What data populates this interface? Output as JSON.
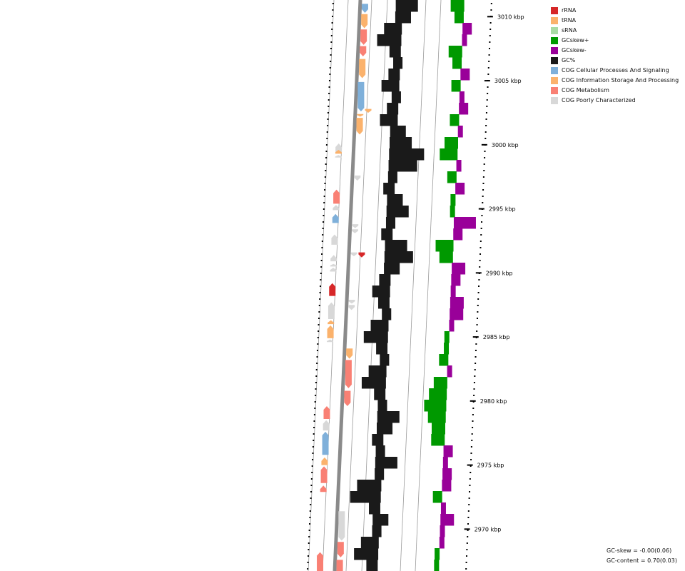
{
  "legend": [
    {
      "label": "rRNA",
      "color": "#d62728"
    },
    {
      "label": "tRNA",
      "color": "#fbb26c"
    },
    {
      "label": "sRNA",
      "color": "#a8dba4"
    },
    {
      "label": "GCskew+",
      "color": "#009900"
    },
    {
      "label": "GCskew-",
      "color": "#990099"
    },
    {
      "label": "GC%",
      "color": "#1a1a1a"
    },
    {
      "label": "COG Cellular Processes And Signaling",
      "color": "#7fb0da"
    },
    {
      "label": "COG Information Storage And Processing",
      "color": "#fbb26c"
    },
    {
      "label": "COG Metabolism",
      "color": "#f98074"
    },
    {
      "label": "COG Poorly Characterized",
      "color": "#d8d8d8"
    }
  ],
  "stats": {
    "gc_skew": "GC-skew = -0.00(0.06)",
    "gc_content": "GC-content = 0.70(0.03)"
  },
  "ticks": [
    "3010 kbp",
    "3005 kbp",
    "3000 kbp",
    "2995 kbp",
    "2990 kbp",
    "2985 kbp",
    "2980 kbp",
    "2975 kbp",
    "2970 kbp"
  ],
  "tracks": {
    "gc_content": [
      0.72,
      0.71,
      0.68,
      0.67,
      0.69,
      0.7,
      0.69,
      0.68,
      0.7,
      0.69,
      0.68,
      0.71,
      0.72,
      0.74,
      0.73,
      0.7,
      0.69,
      0.71,
      0.72,
      0.7,
      0.69,
      0.72,
      0.73,
      0.71,
      0.69,
      0.68,
      0.69,
      0.7,
      0.68,
      0.67,
      0.69,
      0.7,
      0.68,
      0.67,
      0.69,
      0.7,
      0.72,
      0.71,
      0.69,
      0.7,
      0.72,
      0.7,
      0.67,
      0.66,
      0.69,
      0.71,
      0.7,
      0.68,
      0.67,
      0.69
    ],
    "gc_skew": [
      -0.03,
      -0.02,
      0.02,
      0.01,
      -0.03,
      -0.02,
      0.02,
      -0.02,
      0.01,
      0.02,
      -0.02,
      0.01,
      -0.03,
      -0.04,
      0.01,
      -0.02,
      0.02,
      -0.01,
      -0.01,
      0.05,
      0.02,
      -0.04,
      -0.03,
      0.03,
      0.02,
      0.01,
      0.03,
      0.03,
      0.01,
      -0.01,
      -0.01,
      -0.02,
      0.01,
      -0.03,
      -0.04,
      -0.05,
      -0.04,
      -0.03,
      -0.03,
      0.02,
      0.01,
      0.02,
      0.02,
      -0.02,
      0.01,
      0.03,
      0.01,
      0.01,
      -0.01,
      -0.01
    ]
  },
  "features": [
    {
      "track": "outer",
      "category": "rRNA",
      "strand": "+",
      "start": 2989.2,
      "end": 2988.2
    },
    {
      "track": "outer",
      "category": "COG Poorly Characterized",
      "strand": "+",
      "start": 3000.1,
      "end": 2999.4
    },
    {
      "track": "outer",
      "category": "tRNA",
      "strand": "+",
      "start": 2999.6,
      "end": 2999.3
    },
    {
      "track": "outer",
      "category": "COG Poorly Characterized",
      "strand": "+",
      "start": 2999.2,
      "end": 2999.0
    },
    {
      "track": "outer",
      "category": "COG Metabolism",
      "strand": "+",
      "start": 2996.5,
      "end": 2995.4
    },
    {
      "track": "outer",
      "category": "COG Poorly Characterized",
      "strand": "+",
      "start": 2995.3,
      "end": 2994.9
    },
    {
      "track": "outer",
      "category": "COG Cellular Processes And Signaling",
      "strand": "+",
      "start": 2994.6,
      "end": 2993.9
    },
    {
      "track": "outer",
      "category": "COG Poorly Characterized",
      "strand": "+",
      "start": 2993.0,
      "end": 2992.2
    },
    {
      "track": "outer",
      "category": "COG Poorly Characterized",
      "strand": "+",
      "start": 2991.4,
      "end": 2990.9
    },
    {
      "track": "outer",
      "category": "COG Poorly Characterized",
      "strand": "+",
      "start": 2990.7,
      "end": 2990.5
    },
    {
      "track": "outer",
      "category": "COG Poorly Characterized",
      "strand": "+",
      "start": 2990.4,
      "end": 2990.1
    },
    {
      "track": "outer",
      "category": "COG Poorly Characterized",
      "strand": "+",
      "start": 2987.7,
      "end": 2986.4
    },
    {
      "track": "outer",
      "category": "tRNA",
      "strand": "+",
      "start": 2986.3,
      "end": 2986.0
    },
    {
      "track": "outer",
      "category": "tRNA",
      "strand": "+",
      "start": 2985.9,
      "end": 2984.9
    },
    {
      "track": "outer",
      "category": "COG Poorly Characterized",
      "strand": "+",
      "start": 2984.8,
      "end": 2984.6
    },
    {
      "track": "outer",
      "category": "COG Metabolism",
      "strand": "+",
      "start": 2979.6,
      "end": 2978.6
    },
    {
      "track": "outer",
      "category": "COG Poorly Characterized",
      "strand": "+",
      "start": 2978.5,
      "end": 2977.7
    },
    {
      "track": "outer",
      "category": "COG Cellular Processes And Signaling",
      "strand": "+",
      "start": 2977.6,
      "end": 2975.8
    },
    {
      "track": "outer",
      "category": "tRNA",
      "strand": "+",
      "start": 2975.6,
      "end": 2975.0
    },
    {
      "track": "outer",
      "category": "COG Metabolism",
      "strand": "+",
      "start": 2974.9,
      "end": 2973.6
    },
    {
      "track": "outer",
      "category": "COG Metabolism",
      "strand": "+",
      "start": 2973.4,
      "end": 2972.9
    },
    {
      "track": "outer",
      "category": "COG Metabolism",
      "strand": "+",
      "start": 2968.2,
      "end": 2966.6
    },
    {
      "track": "inner",
      "category": "COG Cellular Processes And Signaling",
      "strand": "-",
      "start": 3011.0,
      "end": 3010.3
    },
    {
      "track": "inner",
      "category": "tRNA",
      "strand": "-",
      "start": 3010.2,
      "end": 3009.1
    },
    {
      "track": "inner",
      "category": "COG Metabolism",
      "strand": "-",
      "start": 3009.0,
      "end": 3007.8
    },
    {
      "track": "inner",
      "category": "COG Metabolism",
      "strand": "-",
      "start": 3007.7,
      "end": 3006.9
    },
    {
      "track": "inner",
      "category": "tRNA",
      "strand": "-",
      "start": 3006.7,
      "end": 3005.2
    },
    {
      "track": "inner",
      "category": "COG Cellular Processes And Signaling",
      "strand": "-",
      "start": 3004.9,
      "end": 3002.6
    },
    {
      "track": "inner",
      "category": "tRNA",
      "strand": "-",
      "start": 3002.4,
      "end": 3002.2
    },
    {
      "track": "inner",
      "category": "tRNA",
      "strand": "-",
      "start": 3002.1,
      "end": 3000.8
    },
    {
      "track": "inner",
      "category": "COG Poorly Characterized",
      "strand": "-",
      "start": 2997.6,
      "end": 2997.2
    },
    {
      "track": "inner",
      "category": "COG Poorly Characterized",
      "strand": "-",
      "start": 2993.8,
      "end": 2993.5
    },
    {
      "track": "inner",
      "category": "COG Poorly Characterized",
      "strand": "-",
      "start": 2993.4,
      "end": 2993.1
    },
    {
      "track": "inner",
      "category": "COG Poorly Characterized",
      "strand": "-",
      "start": 2991.6,
      "end": 2991.3
    },
    {
      "track": "inner",
      "category": "COG Poorly Characterized",
      "strand": "-",
      "start": 2987.9,
      "end": 2987.6
    },
    {
      "track": "inner",
      "category": "COG Poorly Characterized",
      "strand": "-",
      "start": 2987.5,
      "end": 2987.1
    },
    {
      "track": "inner",
      "category": "tRNA",
      "strand": "-",
      "start": 2984.1,
      "end": 2983.3
    },
    {
      "track": "inner",
      "category": "COG Metabolism",
      "strand": "-",
      "start": 2983.2,
      "end": 2981.0
    },
    {
      "track": "inner",
      "category": "COG Metabolism",
      "strand": "-",
      "start": 2980.8,
      "end": 2979.6
    },
    {
      "track": "inner",
      "category": "COG Poorly Characterized",
      "strand": "-",
      "start": 2971.4,
      "end": 2969.1
    },
    {
      "track": "inner",
      "category": "COG Metabolism",
      "strand": "-",
      "start": 2969.0,
      "end": 2967.8
    },
    {
      "track": "inner",
      "category": "COG Metabolism",
      "strand": "-",
      "start": 2967.6,
      "end": 2966.1
    },
    {
      "track": "rna",
      "category": "tRNA",
      "strand": "-",
      "start": 3002.8,
      "end": 3002.5
    },
    {
      "track": "rna",
      "category": "rRNA",
      "strand": "-",
      "start": 2991.6,
      "end": 2991.2
    }
  ]
}
